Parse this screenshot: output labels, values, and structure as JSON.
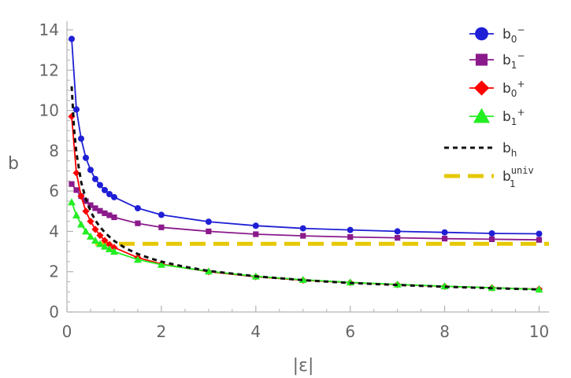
{
  "chart_data": {
    "type": "line",
    "xlabel": "|ε|",
    "ylabel": "b",
    "xlim": [
      0,
      10.1
    ],
    "ylim": [
      0,
      14
    ],
    "xticks": [
      0,
      2,
      4,
      6,
      8,
      10
    ],
    "yticks": [
      0,
      2,
      4,
      6,
      8,
      10,
      12,
      14
    ],
    "minor_x": [
      0.5,
      1,
      1.5,
      2.5,
      3,
      3.5,
      4.5,
      5,
      5.5,
      6.5,
      7,
      7.5,
      8.5,
      9,
      9.5
    ],
    "minor_y": [
      0.5,
      1,
      1.5,
      2.5,
      3,
      3.5,
      4.5,
      5,
      5.5,
      6.5,
      7,
      7.5,
      8.5,
      9,
      9.5,
      10.5,
      11,
      11.5,
      12.5,
      13,
      13.5
    ],
    "legend_position": "top-right",
    "series": [
      {
        "name": "b0−",
        "label_main": "b",
        "label_sub": "0",
        "label_sup": "−",
        "color": "#1f1fd6",
        "marker": "circle",
        "x": [
          0.1,
          0.2,
          0.3,
          0.4,
          0.5,
          0.6,
          0.7,
          0.8,
          0.9,
          1.0,
          1.5,
          2,
          3,
          4,
          5,
          6,
          7,
          8,
          9,
          10
        ],
        "y": [
          13.55,
          10.05,
          8.6,
          7.65,
          7.05,
          6.6,
          6.3,
          6.05,
          5.85,
          5.7,
          5.15,
          4.82,
          4.48,
          4.28,
          4.15,
          4.07,
          4.0,
          3.95,
          3.9,
          3.88
        ]
      },
      {
        "name": "b1−",
        "label_main": "b",
        "label_sub": "1",
        "label_sup": "−",
        "color": "#8b1a8b",
        "marker": "square",
        "x": [
          0.1,
          0.2,
          0.3,
          0.4,
          0.5,
          0.6,
          0.7,
          0.8,
          0.9,
          1.0,
          1.5,
          2,
          3,
          4,
          5,
          6,
          7,
          8,
          9,
          10
        ],
        "y": [
          6.35,
          6.05,
          5.75,
          5.5,
          5.3,
          5.15,
          5.02,
          4.9,
          4.8,
          4.7,
          4.4,
          4.2,
          4.0,
          3.86,
          3.78,
          3.72,
          3.68,
          3.64,
          3.61,
          3.58
        ]
      },
      {
        "name": "b0+",
        "label_main": "b",
        "label_sub": "0",
        "label_sup": "+",
        "color": "#ff0000",
        "marker": "diamond",
        "x": [
          0.1,
          0.2,
          0.3,
          0.4,
          0.5,
          0.6,
          0.7,
          0.8,
          0.9,
          1.0,
          1.5,
          2,
          3,
          4,
          5,
          6,
          7,
          8,
          9,
          10
        ],
        "y": [
          9.7,
          6.9,
          5.75,
          5.0,
          4.5,
          4.1,
          3.8,
          3.55,
          3.35,
          3.2,
          2.7,
          2.38,
          2.0,
          1.75,
          1.58,
          1.46,
          1.36,
          1.27,
          1.2,
          1.13
        ]
      },
      {
        "name": "b1+",
        "label_main": "b",
        "label_sub": "1",
        "label_sup": "+",
        "color": "#22ee22",
        "marker": "triangle",
        "x": [
          0.1,
          0.2,
          0.3,
          0.4,
          0.5,
          0.6,
          0.7,
          0.8,
          0.9,
          1.0,
          1.5,
          2,
          3,
          4,
          5,
          6,
          7,
          8,
          9,
          10
        ],
        "y": [
          5.45,
          4.8,
          4.35,
          4.0,
          3.75,
          3.55,
          3.38,
          3.25,
          3.12,
          3.0,
          2.6,
          2.35,
          2.02,
          1.77,
          1.6,
          1.47,
          1.37,
          1.28,
          1.2,
          1.12
        ]
      },
      {
        "name": "bh",
        "label_main": "b",
        "label_sub": "h",
        "label_sup": "",
        "color": "#111111",
        "marker": "none",
        "dash": "6,5",
        "width": 3,
        "x": [
          0.1,
          0.15,
          0.2,
          0.3,
          0.4,
          0.5,
          0.6,
          0.7,
          0.8,
          0.9,
          1.0,
          1.25,
          1.5,
          1.75,
          2,
          2.5,
          3,
          4,
          5,
          6,
          7,
          8,
          9,
          10
        ],
        "y": [
          11.2,
          9.1,
          7.9,
          6.45,
          5.6,
          5.0,
          4.55,
          4.22,
          3.95,
          3.73,
          3.53,
          3.15,
          2.88,
          2.67,
          2.5,
          2.24,
          2.04,
          1.77,
          1.58,
          1.44,
          1.34,
          1.25,
          1.18,
          1.12
        ]
      },
      {
        "name": "b1univ",
        "label_main": "b",
        "label_sub": "1",
        "label_sup": "univ",
        "color": "#e6c800",
        "marker": "none",
        "dash": "20,10",
        "width": 5,
        "x": [
          0.6,
          10.2
        ],
        "y": [
          3.38,
          3.38
        ]
      }
    ]
  }
}
